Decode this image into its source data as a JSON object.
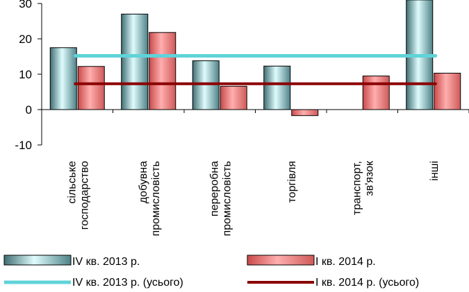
{
  "chart_data": {
    "type": "bar",
    "title": "",
    "categories": [
      [
        "сільське",
        "господарство"
      ],
      [
        "добувна",
        "промисловість"
      ],
      [
        "переробна",
        "промисловість"
      ],
      [
        "торгівля"
      ],
      [
        "транспорт,",
        "зв'язок"
      ],
      [
        "інші"
      ]
    ],
    "series": [
      {
        "name": "ІV кв. 2013 р.",
        "values": [
          17.5,
          27,
          13.8,
          12.3,
          null,
          31
        ],
        "color": "#b4ecee"
      },
      {
        "name": "І кв. 2014 р.",
        "values": [
          12.2,
          21.8,
          6.6,
          -1.7,
          9.5,
          10.3
        ],
        "color": "#f08080"
      }
    ],
    "lines": [
      {
        "name": "ІV кв. 2013 р. (усього)",
        "value": 15.2,
        "color": "#5fd3d8"
      },
      {
        "name": "І кв. 2014 р. (усього)",
        "value": 7.3,
        "color": "#8b0000"
      }
    ],
    "ylim": [
      -10,
      30
    ],
    "yticks": [
      -10,
      0,
      10,
      20,
      30
    ],
    "xlabel": "",
    "ylabel": "",
    "legend": "bottom",
    "grid": false
  }
}
